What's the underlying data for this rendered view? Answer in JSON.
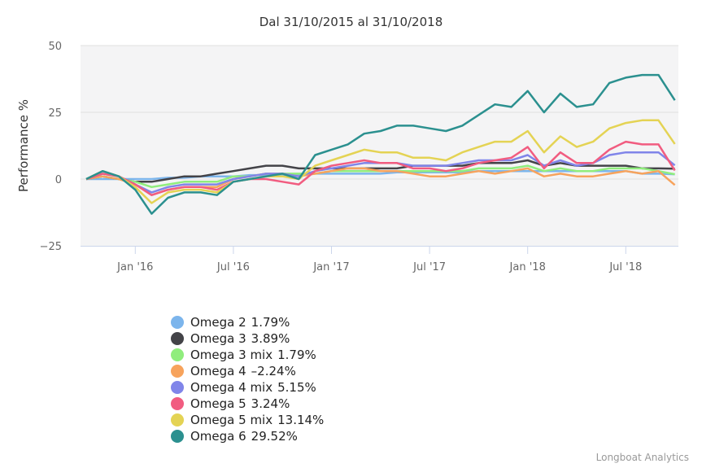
{
  "chart_data": {
    "type": "line",
    "title": "Dal 31/10/2015 al 31/10/2018",
    "ylabel": "Performance %",
    "xlabel": "",
    "ylim": [
      -25,
      50
    ],
    "yticks": [
      50,
      25,
      0,
      -25
    ],
    "xticks": [
      {
        "date": "2016-01",
        "label": "Jan '16"
      },
      {
        "date": "2016-07",
        "label": "Jul '16"
      },
      {
        "date": "2017-01",
        "label": "Jan '17"
      },
      {
        "date": "2017-07",
        "label": "Jul '17"
      },
      {
        "date": "2018-01",
        "label": "Jan '18"
      },
      {
        "date": "2018-07",
        "label": "Jul '18"
      }
    ],
    "grid": true,
    "legend_position": "bottom-left",
    "x": [
      "2015-10",
      "2015-11",
      "2015-12",
      "2016-01",
      "2016-02",
      "2016-03",
      "2016-04",
      "2016-05",
      "2016-06",
      "2016-07",
      "2016-08",
      "2016-09",
      "2016-10",
      "2016-11",
      "2016-12",
      "2017-01",
      "2017-02",
      "2017-03",
      "2017-04",
      "2017-05",
      "2017-06",
      "2017-07",
      "2017-08",
      "2017-09",
      "2017-10",
      "2017-11",
      "2017-12",
      "2018-01",
      "2018-02",
      "2018-03",
      "2018-04",
      "2018-05",
      "2018-06",
      "2018-07",
      "2018-08",
      "2018-09",
      "2018-10"
    ],
    "series": [
      {
        "name": "Omega 2",
        "value_label": "1.79%",
        "color": "#7cb5ec",
        "values": [
          0,
          0,
          0,
          0,
          0,
          0.5,
          0.5,
          1,
          1,
          1,
          1.5,
          1.5,
          1.5,
          1.5,
          2,
          2,
          2,
          2,
          2,
          2.5,
          2.5,
          2.5,
          2.5,
          2.5,
          3,
          3,
          3,
          3,
          3,
          3,
          3,
          3,
          3,
          3,
          2,
          2,
          1.79
        ]
      },
      {
        "name": "Omega 3",
        "value_label": "3.89%",
        "color": "#434348",
        "values": [
          0,
          1,
          0,
          -1,
          -1,
          0,
          1,
          1,
          2,
          3,
          4,
          5,
          5,
          4,
          4,
          4,
          4,
          4,
          4,
          4,
          5,
          5,
          5,
          5,
          6,
          6,
          6,
          7,
          5,
          6,
          5,
          5,
          5,
          5,
          4,
          4,
          3.89
        ]
      },
      {
        "name": "Omega 3 mix",
        "value_label": "1.79%",
        "color": "#90ed7d",
        "values": [
          0,
          1,
          0,
          -1,
          -3,
          -2,
          -1,
          -1,
          -1,
          1,
          1,
          2,
          2,
          2,
          2,
          3,
          3,
          3,
          3,
          3,
          3,
          3,
          3,
          3,
          4,
          4,
          4,
          5,
          3,
          4,
          3,
          3,
          4,
          4,
          4,
          3,
          1.79
        ]
      },
      {
        "name": "Omega 4",
        "value_label": "-2.24%",
        "color": "#f7a35c",
        "values": [
          0,
          1,
          0,
          -2,
          -6,
          -4,
          -3,
          -3,
          -3,
          0,
          1,
          2,
          2,
          1,
          2,
          3,
          4,
          4,
          3,
          3,
          2,
          1,
          1,
          2,
          3,
          2,
          3,
          4,
          1,
          2,
          1,
          1,
          2,
          3,
          2,
          3,
          -2.24
        ]
      },
      {
        "name": "Omega 4 mix",
        "value_label": "5.15%",
        "color": "#8085e9",
        "values": [
          0,
          2,
          1,
          -2,
          -5,
          -3,
          -2,
          -2,
          -2,
          0,
          1,
          2,
          2,
          1,
          3,
          4,
          5,
          6,
          6,
          6,
          5,
          5,
          5,
          6,
          7,
          7,
          7,
          9,
          5,
          7,
          5,
          6,
          9,
          10,
          10,
          10,
          5.15
        ]
      },
      {
        "name": "Omega 5",
        "value_label": "3.24%",
        "color": "#f15c80",
        "values": [
          0,
          2,
          1,
          -2,
          -6,
          -4,
          -3,
          -3,
          -4,
          -1,
          0,
          0,
          -1,
          -2,
          3,
          5,
          6,
          7,
          6,
          6,
          4,
          4,
          3,
          4,
          6,
          7,
          8,
          12,
          4,
          10,
          6,
          6,
          11,
          14,
          13,
          13,
          3.24
        ]
      },
      {
        "name": "Omega 5 mix",
        "value_label": "13.14%",
        "color": "#e4d354",
        "values": [
          0,
          3,
          1,
          -3,
          -9,
          -5,
          -4,
          -4,
          -5,
          -1,
          0,
          1,
          1,
          0,
          5,
          7,
          9,
          11,
          10,
          10,
          8,
          8,
          7,
          10,
          12,
          14,
          14,
          18,
          10,
          16,
          12,
          14,
          19,
          21,
          22,
          22,
          13.14
        ]
      },
      {
        "name": "Omega 6",
        "value_label": "29.52%",
        "color": "#2b908f",
        "values": [
          0,
          3,
          1,
          -4,
          -13,
          -7,
          -5,
          -5,
          -6,
          -1,
          0,
          1,
          2,
          0,
          9,
          11,
          13,
          17,
          18,
          20,
          20,
          19,
          18,
          20,
          24,
          28,
          27,
          33,
          25,
          32,
          27,
          28,
          36,
          38,
          39,
          39,
          29.52
        ]
      }
    ]
  },
  "credit": "Longboat Analytics"
}
